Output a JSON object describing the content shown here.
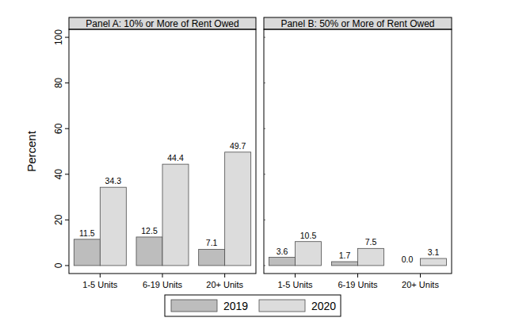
{
  "chart_data": [
    {
      "type": "bar",
      "title": "Panel A: 10% or More of Rent Owed",
      "y_label": "Percent",
      "categories": [
        "1-5 Units",
        "6-19 Units",
        "20+ Units"
      ],
      "series": [
        {
          "name": "2019",
          "color": "#bdbdbd",
          "values": [
            11.5,
            12.5,
            7.1
          ]
        },
        {
          "name": "2020",
          "color": "#dcdcdc",
          "values": [
            34.3,
            44.4,
            49.7
          ]
        }
      ],
      "ylim": [
        -3.5,
        103.5
      ],
      "yticks": [
        0,
        20,
        40,
        60,
        80,
        100
      ],
      "data_labels": true,
      "legend": "bottom",
      "grid": false
    },
    {
      "type": "bar",
      "title": "Panel B: 50% or More of Rent Owed",
      "categories": [
        "1-5 Units",
        "6-19 Units",
        "20+ Units"
      ],
      "series": [
        {
          "color": "#bdbdbd",
          "values": [
            3.6,
            1.7,
            0
          ],
          "value_labels": [
            "3.6",
            "1.7",
            "0.0"
          ]
        },
        {
          "color": "#dcdcdc",
          "values": [
            10.5,
            7.5,
            3.1
          ]
        }
      ],
      "ylim": [
        -3.5,
        103.5
      ],
      "yticks": [
        0,
        20,
        40,
        60,
        80,
        100
      ],
      "data_labels": true,
      "tick_labels": "x",
      "grid": false
    }
  ]
}
